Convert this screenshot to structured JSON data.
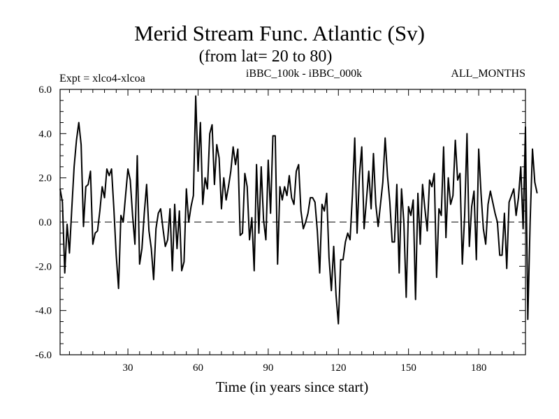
{
  "chart_data": {
    "type": "line",
    "title": "Merid Stream Func. Atlantic (Sv)",
    "subtitle": "(from lat= 20 to 80)",
    "experiment": "Expt = xlco4-xlcoa",
    "comparison": "iBBC_100k - iBBC_000k",
    "period": "ALL_MONTHS",
    "xlabel": "Time (in years since start)",
    "xlim": [
      1,
      200
    ],
    "ylim": [
      -6.0,
      6.0
    ],
    "x_ticks": [
      30,
      60,
      90,
      120,
      150,
      180
    ],
    "x_tick_labels": [
      "30",
      "60",
      "90",
      "120",
      "150",
      "180"
    ],
    "y_ticks": [
      -6,
      -4,
      -2,
      0,
      2,
      4,
      6
    ],
    "y_tick_labels": [
      "-6.0",
      "-4.0",
      "-2.0",
      "0.0",
      "2.0",
      "4.0",
      "6.0"
    ],
    "reference_line": 0,
    "series": [
      {
        "name": "iBBC_100k - iBBC_000k",
        "x_start": 1,
        "values": [
          1.5,
          0.9,
          -2.3,
          -0.1,
          -1.4,
          0.6,
          2.5,
          3.7,
          4.5,
          3.5,
          -0.2,
          1.6,
          1.7,
          2.3,
          -1.0,
          -0.5,
          -0.4,
          0.5,
          1.6,
          1.1,
          2.4,
          2.1,
          2.4,
          0.6,
          -1.5,
          -3.0,
          0.3,
          0.0,
          1.2,
          2.4,
          1.9,
          0.3,
          -1.0,
          3.0,
          -1.9,
          -1.2,
          0.4,
          1.7,
          -0.4,
          -1.2,
          -2.6,
          -0.3,
          0.4,
          0.6,
          -0.3,
          -1.1,
          -0.8,
          0.6,
          -2.2,
          0.8,
          -1.2,
          0.5,
          -2.2,
          -1.8,
          1.5,
          0.0,
          0.7,
          1.2,
          5.7,
          2.3,
          4.5,
          0.8,
          2.0,
          1.5,
          4.0,
          4.4,
          1.7,
          3.5,
          2.9,
          0.6,
          2.0,
          1.0,
          1.6,
          2.3,
          3.4,
          2.6,
          3.3,
          -0.6,
          -0.5,
          2.2,
          1.6,
          -0.8,
          0.2,
          -2.2,
          2.6,
          -0.5,
          2.5,
          0.1,
          -0.8,
          2.8,
          0.4,
          3.9,
          3.9,
          -1.9,
          1.6,
          1.0,
          1.6,
          1.2,
          2.1,
          1.1,
          0.8,
          2.3,
          2.6,
          0.5,
          -0.3,
          0.0,
          0.4,
          1.1,
          1.1,
          0.9,
          -0.4,
          -2.3,
          0.8,
          0.5,
          1.3,
          -1.6,
          -3.1,
          -1.1,
          -3.3,
          -4.6,
          -1.7,
          -1.7,
          -0.9,
          -0.5,
          -0.8,
          1.2,
          3.8,
          -0.5,
          2.1,
          3.4,
          -0.3,
          1.0,
          2.3,
          0.6,
          3.1,
          0.8,
          -0.2,
          0.8,
          1.8,
          3.8,
          2.1,
          0.9,
          -0.9,
          -0.9,
          1.7,
          -2.3,
          1.5,
          0.0,
          -3.4,
          0.7,
          0.3,
          1.0,
          -3.5,
          1.3,
          -1.0,
          1.7,
          0.6,
          -0.4,
          1.9,
          1.6,
          2.2,
          -2.5,
          0.6,
          0.3,
          3.4,
          -0.7,
          2.0,
          0.8,
          1.2,
          3.7,
          1.9,
          2.2,
          -1.9,
          0.3,
          4.0,
          -1.1,
          0.7,
          1.4,
          -1.7,
          3.3,
          1.3,
          -0.3,
          -1.0,
          0.8,
          1.4,
          0.9,
          0.4,
          0.0,
          -1.5,
          -1.5,
          0.4,
          -2.1,
          0.9,
          1.2,
          1.5,
          0.3,
          1.1,
          2.5,
          -0.3,
          4.3,
          -4.4,
          0.0,
          3.3,
          1.8,
          1.3
        ]
      }
    ]
  }
}
